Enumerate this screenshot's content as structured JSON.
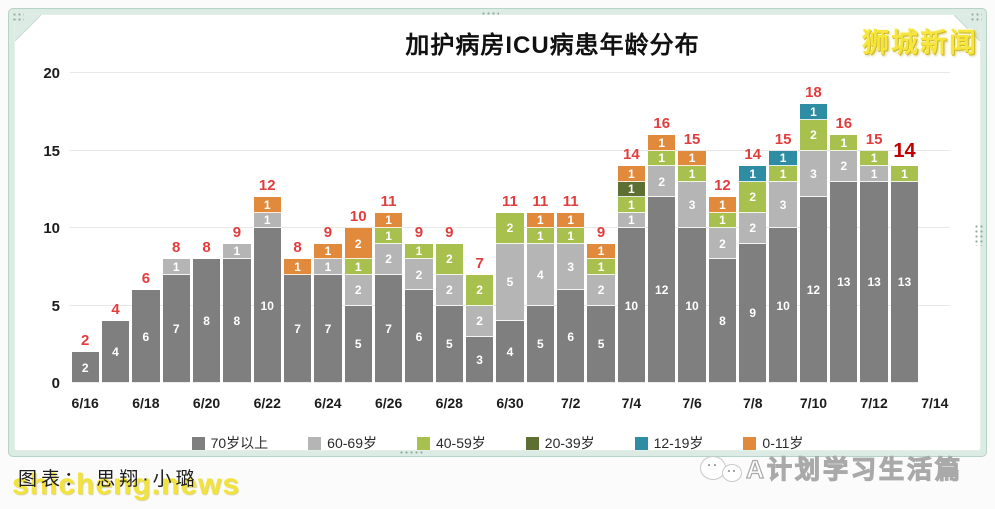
{
  "header": {
    "badge": "狮城新闻"
  },
  "chart_data": {
    "type": "stacked-bar",
    "title": "加护病房ICU病患年龄分布",
    "categories": [
      "6/16",
      "6/17",
      "6/18",
      "6/19",
      "6/20",
      "6/21",
      "6/22",
      "6/23",
      "6/24",
      "6/25",
      "6/26",
      "6/27",
      "6/28",
      "6/29",
      "6/30",
      "7/1",
      "7/2",
      "7/3",
      "7/4",
      "7/5",
      "7/6",
      "7/7",
      "7/8",
      "7/9",
      "7/10",
      "7/11",
      "7/12",
      "7/13"
    ],
    "x_tick_labels": [
      "6/16",
      "6/18",
      "6/20",
      "6/22",
      "6/24",
      "6/26",
      "6/28",
      "6/30",
      "7/2",
      "7/4",
      "7/6",
      "7/8",
      "7/10",
      "7/12",
      "7/14"
    ],
    "series": [
      {
        "name": "70岁以上",
        "color": "#7f7f7f",
        "values": [
          2,
          4,
          6,
          7,
          8,
          8,
          10,
          7,
          7,
          5,
          7,
          6,
          5,
          3,
          4,
          5,
          6,
          5,
          10,
          12,
          10,
          8,
          9,
          10,
          12,
          13,
          13,
          13
        ]
      },
      {
        "name": "60-69岁",
        "color": "#b5b5b5",
        "values": [
          0,
          0,
          0,
          1,
          0,
          1,
          1,
          0,
          1,
          2,
          2,
          2,
          2,
          2,
          5,
          4,
          3,
          2,
          1,
          2,
          3,
          2,
          2,
          3,
          3,
          2,
          1,
          0
        ]
      },
      {
        "name": "40-59岁",
        "color": "#a8c04d",
        "values": [
          0,
          0,
          0,
          0,
          0,
          0,
          0,
          0,
          0,
          1,
          1,
          1,
          2,
          2,
          2,
          1,
          1,
          1,
          1,
          1,
          1,
          1,
          2,
          1,
          2,
          1,
          1,
          1
        ]
      },
      {
        "name": "20-39岁",
        "color": "#5d6f33",
        "values": [
          0,
          0,
          0,
          0,
          0,
          0,
          0,
          0,
          0,
          0,
          0,
          0,
          0,
          0,
          0,
          0,
          0,
          0,
          1,
          0,
          0,
          0,
          0,
          0,
          0,
          0,
          0,
          0
        ]
      },
      {
        "name": "12-19岁",
        "color": "#2e8ca3",
        "values": [
          0,
          0,
          0,
          0,
          0,
          0,
          0,
          0,
          0,
          0,
          0,
          0,
          0,
          0,
          0,
          0,
          0,
          0,
          0,
          0,
          0,
          0,
          1,
          1,
          1,
          0,
          0,
          0
        ]
      },
      {
        "name": "0-11岁",
        "color": "#e18a3b",
        "values": [
          0,
          0,
          0,
          0,
          0,
          0,
          1,
          1,
          1,
          2,
          1,
          0,
          0,
          0,
          0,
          1,
          1,
          1,
          1,
          1,
          1,
          1,
          0,
          0,
          0,
          0,
          0,
          0
        ]
      }
    ],
    "totals": [
      2,
      4,
      6,
      8,
      8,
      9,
      12,
      8,
      9,
      10,
      11,
      9,
      9,
      7,
      11,
      11,
      11,
      9,
      14,
      16,
      15,
      12,
      14,
      15,
      18,
      16,
      15,
      14
    ],
    "ylim": [
      0,
      20
    ],
    "yticks": [
      0,
      5,
      10,
      15,
      20
    ],
    "grid": true,
    "legend_position": "bottom",
    "total_label_color": "#e23d3d",
    "last_total_emphasized": true
  },
  "footer": {
    "watermark": "shicheng.news",
    "credit": "图表： 思翔·小璐",
    "channel": "A计划学习生活篇",
    "channel_icon": "chick-icon"
  }
}
